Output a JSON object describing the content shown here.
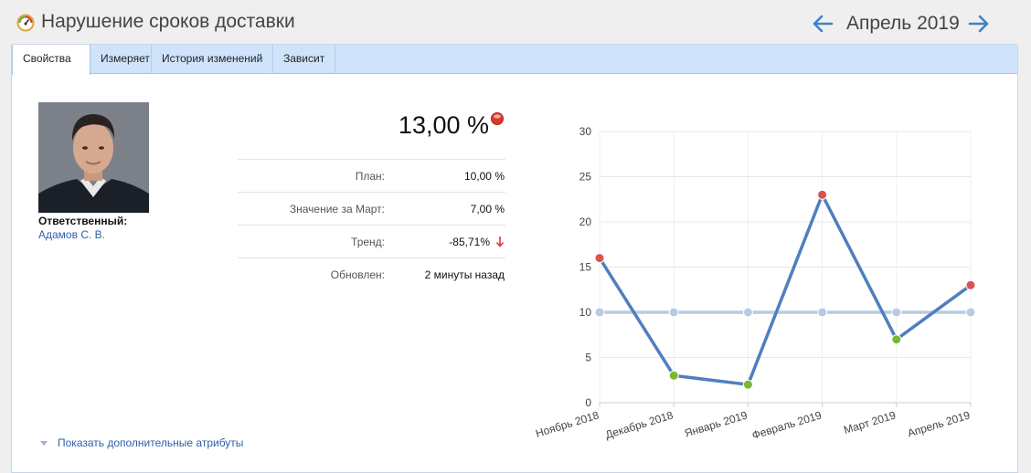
{
  "header": {
    "title": "Нарушение сроков доставки",
    "period": "Апрель 2019"
  },
  "tabs": [
    {
      "label": "Свойства",
      "active": true
    },
    {
      "label": "Измеряет",
      "active": false
    },
    {
      "label": "История изменений",
      "active": false
    },
    {
      "label": "Зависит",
      "active": false
    }
  ],
  "responsible": {
    "label": "Ответственный:",
    "name": "Адамов С. В."
  },
  "metric": {
    "value": "13,00 %",
    "status_color": "#d9392b"
  },
  "attributes": [
    {
      "label": "План:",
      "value": "10,00 %"
    },
    {
      "label": "Значение за Март:",
      "value": "7,00 %"
    },
    {
      "label": "Тренд:",
      "value": "-85,71%",
      "trend": "down"
    },
    {
      "label": "Обновлен:",
      "value": "2 минуты назад"
    }
  ],
  "more_link": "Показать дополнительные атрибуты",
  "chart_data": {
    "type": "line",
    "categories": [
      "Ноябрь 2018",
      "Декабрь 2018",
      "Январь 2019",
      "Февраль 2019",
      "Март 2019",
      "Апрель 2019"
    ],
    "ylim": [
      0,
      30
    ],
    "yticks": [
      0,
      5,
      10,
      15,
      20,
      25,
      30
    ],
    "grid": true,
    "series": [
      {
        "values": [
          16,
          3,
          2,
          23,
          7,
          13
        ],
        "color": "#4f7fbe",
        "point_colors": [
          "#d9534f",
          "#7cb82f",
          "#7cb82f",
          "#d9534f",
          "#7cb82f",
          "#d9534f"
        ]
      },
      {
        "values": [
          10,
          10,
          10,
          10,
          10,
          10
        ],
        "color": "#b7cbe3"
      }
    ]
  },
  "colors": {
    "accent": "#2f5fa8",
    "tab_bar": "#cfe3fb",
    "bad": "#d9534f",
    "good": "#7cb82f"
  }
}
